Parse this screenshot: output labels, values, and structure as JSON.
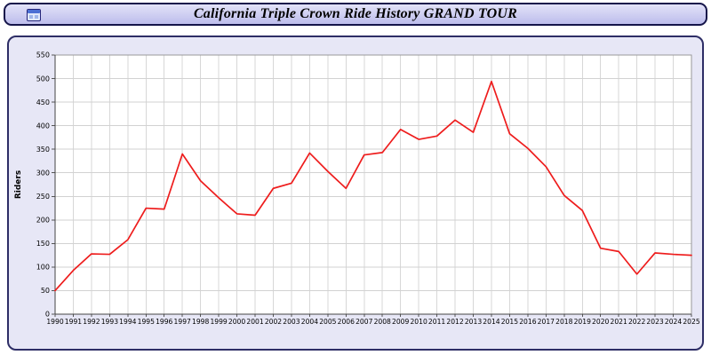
{
  "header": {
    "title": "California Triple Crown Ride History GRAND TOUR"
  },
  "icons": {
    "app_icon": "window-icon"
  },
  "colors": {
    "line": "#ee1c1c",
    "panel_bg": "#e7e7f6",
    "titlebar_bg": "#c9c9ee",
    "border": "#15154a",
    "grid": "#d2d2d2"
  },
  "chart_data": {
    "type": "line",
    "title": "California Triple Crown Ride History GRAND TOUR",
    "xlabel": "",
    "ylabel": "Riders",
    "ylim": [
      0,
      550
    ],
    "ytick_step": 50,
    "grid": true,
    "legend": false,
    "line_color": "#ee1c1c",
    "categories": [
      "1990",
      "1991",
      "1992",
      "1993",
      "1994",
      "1995",
      "1996",
      "1997",
      "1998",
      "1999",
      "2000",
      "2001",
      "2002",
      "2003",
      "2004",
      "2005",
      "2006",
      "2007",
      "2008",
      "2009",
      "2010",
      "2011",
      "2012",
      "2013",
      "2014",
      "2015",
      "2016",
      "2017",
      "2018",
      "2019",
      "2020",
      "2021",
      "2022",
      "2023",
      "2024",
      "2025"
    ],
    "values": [
      50,
      93,
      128,
      127,
      158,
      225,
      223,
      340,
      283,
      247,
      213,
      210,
      267,
      278,
      342,
      303,
      267,
      338,
      343,
      392,
      371,
      378,
      412,
      386,
      494,
      383,
      352,
      313,
      252,
      220,
      140,
      133,
      85,
      130,
      127,
      125
    ]
  }
}
